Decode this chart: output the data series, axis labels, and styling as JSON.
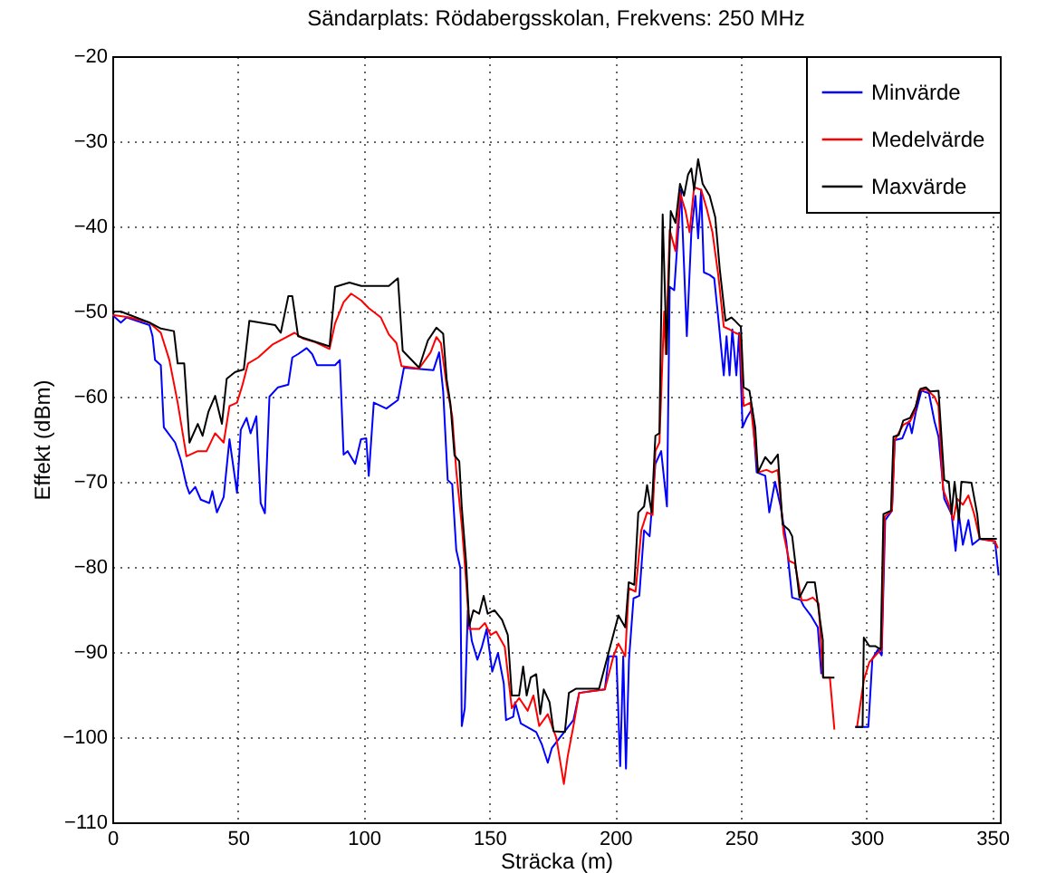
{
  "chart_data": {
    "type": "line",
    "title": "Sändarplats: Rödabergsskolan, Frekvens: 250 MHz",
    "xlabel": "Sträcka (m)",
    "ylabel": "Effekt (dBm)",
    "xlim": [
      0,
      353
    ],
    "xticks": [
      0,
      50,
      100,
      150,
      200,
      250,
      300,
      350
    ],
    "ylim": [
      -110,
      -20
    ],
    "yticks": [
      -110,
      -100,
      -90,
      -80,
      -70,
      -60,
      -50,
      -40,
      -30,
      -20
    ],
    "grid": true,
    "legend": "top right",
    "line_style": "solid",
    "marker": "none",
    "series": [
      {
        "name": "Minvärde",
        "color": "#0000ff",
        "x": [
          0,
          3.4,
          5.7,
          14.8,
          16,
          17,
          19.3,
          20.5,
          25,
          27.3,
          29.5,
          30.7,
          33,
          35.2,
          38.6,
          39.8,
          41.6,
          44.3,
          46.6,
          49.6,
          51.1,
          53.4,
          55,
          57.3,
          59,
          60.7,
          62.5,
          65.9,
          70,
          71.6,
          73.9,
          77.3,
          79.5,
          81.4,
          88.6,
          90.5,
          92,
          93.6,
          96.6,
          98.9,
          101,
          102,
          104,
          109,
          113.6,
          116,
          127.7,
          130,
          131.6,
          133.4,
          135.2,
          136.8,
          138.4,
          139,
          140.2,
          141.4,
          143,
          145.2,
          147,
          148.9,
          151.1,
          153.4,
          155.7,
          156.6,
          159.5,
          160.2,
          162.5,
          168.6,
          170.9,
          173.2,
          174.8,
          183.4,
          185.7,
          195.9,
          197.5,
          200.5,
          202,
          203.2,
          204.3,
          205.5,
          207.3,
          209.6,
          211.5,
          213.7,
          216,
          218.3,
          220.6,
          221.7,
          223.5,
          225.1,
          226.2,
          228.5,
          230.3,
          231.9,
          233,
          234.2,
          235.3,
          237.6,
          239.4,
          241,
          243.2,
          244.3,
          245.5,
          246.6,
          248.2,
          249.3,
          250.7,
          252.3,
          254.5,
          256.3,
          259.7,
          261.3,
          263.6,
          265.8,
          268.1,
          270.4,
          273.8,
          275,
          277.8,
          280.6,
          282,
          290,
          295.5,
          300.7,
          302.3,
          304.5,
          306,
          307.4,
          310.1,
          311.2,
          314.2,
          316.9,
          318,
          319.6,
          321.8,
          324.8,
          327,
          328.6,
          330.9,
          333.8,
          335.4,
          336.7,
          338.3,
          340.5,
          342.1,
          345,
          351.1,
          352.5
        ],
        "values": [
          -50.4,
          -51.3,
          -50.7,
          -51.6,
          -52.9,
          -55.7,
          -56.3,
          -63.6,
          -65.4,
          -67.5,
          -70.4,
          -71.4,
          -70.6,
          -72.1,
          -72.5,
          -71.1,
          -73.6,
          -71.8,
          -65,
          -71.3,
          -63.9,
          -62.5,
          -64.3,
          -62.3,
          -72.5,
          -73.7,
          -60,
          -58.9,
          -58.6,
          -55.4,
          -55,
          -54.3,
          -55,
          -56.3,
          -56.3,
          -55.7,
          -66.8,
          -66.4,
          -67.9,
          -65,
          -64.9,
          -69.3,
          -60.7,
          -61.4,
          -60.4,
          -56.6,
          -56.9,
          -54.8,
          -59.4,
          -69.8,
          -70.3,
          -78,
          -80.1,
          -98.7,
          -96.6,
          -85.1,
          -88.7,
          -90.9,
          -89.4,
          -87.3,
          -92.3,
          -90.1,
          -93.7,
          -98,
          -97.6,
          -95.9,
          -98.4,
          -99.4,
          -100.9,
          -103,
          -101.3,
          -98,
          -94.8,
          -94.4,
          -90.5,
          -90.5,
          -103.4,
          -90.5,
          -103.7,
          -90.9,
          -83.7,
          -83.4,
          -75.7,
          -76.4,
          -67.9,
          -66.4,
          -72.9,
          -47.1,
          -47.5,
          -40.4,
          -35.7,
          -52.9,
          -40.7,
          -36.4,
          -41.4,
          -35.7,
          -45.4,
          -45.7,
          -46.1,
          -50.7,
          -57.5,
          -52.9,
          -57.5,
          -52.1,
          -57.5,
          -52.5,
          -63.6,
          -62.5,
          -61.4,
          -68.9,
          -69.3,
          -73.6,
          -70,
          -72.9,
          -77.1,
          -83.6,
          -83.9,
          -84.6,
          -85.7,
          -87.1,
          -92.6,
          null,
          -98.8,
          -98.8,
          -90.8,
          -89.7,
          -90.4,
          -74.5,
          -73.4,
          -65.1,
          -64.9,
          -62.9,
          -64.3,
          -61.8,
          -59.3,
          -59.6,
          -62.9,
          -64.7,
          -72,
          -73.8,
          -78.1,
          -73.8,
          -77.4,
          -74.5,
          -77.4,
          -76.7,
          -77,
          -81
        ]
      },
      {
        "name": "Medelvärde",
        "color": "#ff0000",
        "x": [
          0,
          6.8,
          14.8,
          19.3,
          22.7,
          26,
          29.5,
          34,
          37.5,
          40.9,
          44.3,
          46.6,
          49.6,
          51.8,
          54,
          58,
          63.6,
          68,
          72.5,
          76,
          80.7,
          86.4,
          88.6,
          92,
          95,
          99,
          102,
          106.8,
          110,
          113,
          115,
          122,
          126.6,
          128.9,
          130.7,
          133,
          135.2,
          136.8,
          139,
          140.7,
          142,
          145.9,
          148.2,
          150.5,
          152.7,
          156.1,
          158.9,
          161.8,
          165.2,
          167.5,
          169.8,
          173.2,
          176.6,
          179.6,
          181.1,
          183.4,
          185.7,
          195.9,
          199.3,
          201.3,
          204,
          205.4,
          208.1,
          210.4,
          212.7,
          214.9,
          216,
          217.6,
          219.5,
          220.1,
          221.7,
          224,
          225.8,
          228,
          229.6,
          231.4,
          234.2,
          236.4,
          238.7,
          241,
          243.2,
          245.5,
          247.7,
          249.5,
          251.1,
          253.8,
          256.8,
          260.2,
          262.4,
          264.7,
          267,
          269.2,
          271.5,
          274.1,
          276.4,
          278.6,
          280.9,
          282,
          282.7,
          285.4,
          287.2,
          291,
          296.2,
          298.9,
          301.1,
          304.5,
          306,
          307.2,
          310.1,
          311.2,
          314.6,
          317.3,
          319.1,
          320.9,
          323.6,
          327,
          328.6,
          330.4,
          332.7,
          334.5,
          336,
          338.3,
          340.5,
          342.8,
          345,
          351.1,
          352.2
        ],
        "values": [
          -50.4,
          -50.7,
          -51.3,
          -52.5,
          -55.7,
          -60.7,
          -67,
          -66.4,
          -66.4,
          -64.3,
          -65.4,
          -61.1,
          -60.7,
          -58.6,
          -56.1,
          -55.4,
          -53.9,
          -53.2,
          -52.5,
          -53.2,
          -53.6,
          -54.4,
          -51.4,
          -48.9,
          -47.9,
          -48.7,
          -49.6,
          -50.7,
          -52.7,
          -53.7,
          -56.4,
          -56.7,
          -54.8,
          -53,
          -53.7,
          -58.7,
          -62.3,
          -68.7,
          -75.1,
          -81.6,
          -87.3,
          -87.3,
          -86.6,
          -88,
          -87.6,
          -89.4,
          -96.6,
          -95.4,
          -96.9,
          -95.1,
          -98.7,
          -97.3,
          -100.1,
          -105.5,
          -102.3,
          -98.7,
          -94.8,
          -94.4,
          -90.5,
          -89,
          -90.5,
          -82.5,
          -82.9,
          -75.7,
          -73.6,
          -73.9,
          -66.4,
          -65.4,
          -50,
          -55,
          -40.4,
          -42.9,
          -36.1,
          -38.2,
          -40.7,
          -35.4,
          -35.7,
          -37.9,
          -40.7,
          -45.7,
          -51.8,
          -52.1,
          -52.5,
          -52.7,
          -61.1,
          -60.7,
          -68.9,
          -68.6,
          -68.9,
          -68.6,
          -76.1,
          -79.3,
          -79.6,
          -83.9,
          -83.9,
          -83.6,
          -84.3,
          -89.7,
          -93,
          -93,
          -99.1,
          null,
          -98.8,
          -93.3,
          -91.2,
          -90.1,
          -89.7,
          -74.1,
          -73.4,
          -65.1,
          -63.3,
          -62.9,
          -61.8,
          -59.3,
          -59.1,
          -60,
          -61.1,
          -70.9,
          -72.7,
          -74.5,
          -72,
          -72.7,
          -71.6,
          -73.8,
          -76.7,
          -77,
          -77.8
        ]
      },
      {
        "name": "Maxvärde",
        "color": "#000000",
        "x": [
          0,
          3.4,
          14.8,
          19.3,
          24.5,
          26,
          28.6,
          30.7,
          34,
          35.9,
          38.2,
          40.9,
          43.6,
          45.5,
          48.9,
          52.3,
          54.5,
          64.8,
          67,
          70,
          71.6,
          73.9,
          86.4,
          88.6,
          94.3,
          99,
          110,
          113.6,
          115.5,
          122,
          125.5,
          128.9,
          131.6,
          133,
          134.5,
          136.1,
          138,
          139,
          140.7,
          142,
          143.6,
          145.9,
          147.7,
          149.3,
          152,
          155,
          157.3,
          158.9,
          161.8,
          163.4,
          164.8,
          166.4,
          168.6,
          170.2,
          171.6,
          173.9,
          175.5,
          180,
          181.6,
          184.5,
          193.6,
          197,
          201.3,
          204,
          205.4,
          207.6,
          209.2,
          211.5,
          212.7,
          214.5,
          216,
          217.6,
          218.9,
          220.5,
          222.1,
          224,
          225.8,
          227.4,
          229,
          230.3,
          231.4,
          233,
          234.8,
          237.6,
          239.8,
          241.6,
          243.9,
          246.2,
          247.7,
          250,
          251.1,
          253.4,
          255.7,
          256.8,
          259.7,
          262,
          264.7,
          266.6,
          269.2,
          270.4,
          273.3,
          276.4,
          279.4,
          282.6,
          282.7,
          287.2,
          291,
          295.5,
          298.4,
          298.9,
          301.1,
          303.4,
          305.6,
          306.7,
          309.7,
          310.7,
          312.8,
          314.6,
          317.3,
          319.6,
          321.4,
          323.6,
          325.4,
          328.6,
          330.9,
          332.7,
          333.8,
          335,
          336.7,
          337.7,
          341.7,
          344,
          345,
          351.8
        ],
        "values": [
          -50,
          -50,
          -51.3,
          -52,
          -52.3,
          -56.1,
          -56.1,
          -65.4,
          -63.2,
          -64.6,
          -61.8,
          -59.9,
          -63.2,
          -57.9,
          -57.1,
          -56.8,
          -51.1,
          -51.6,
          -52.5,
          -48.2,
          -48.2,
          -52.9,
          -54.1,
          -47.1,
          -46.6,
          -47,
          -47,
          -46.1,
          -54.6,
          -56.6,
          -53.4,
          -51.9,
          -52.6,
          -58,
          -60.9,
          -66.9,
          -67.6,
          -73,
          -79.4,
          -86.9,
          -85.1,
          -85.5,
          -83.4,
          -85.5,
          -85.1,
          -86.2,
          -88,
          -95.1,
          -95.1,
          -91.7,
          -95.1,
          -93,
          -92.6,
          -97.3,
          -94.4,
          -95.9,
          -99.3,
          -99.4,
          -94.8,
          -94.3,
          -94.3,
          -90.5,
          -85.7,
          -87.1,
          -81.8,
          -82.1,
          -73.6,
          -72.9,
          -70.4,
          -73.6,
          -64.6,
          -64.3,
          -38.6,
          -55,
          -38.2,
          -39.6,
          -35,
          -36.4,
          -33.9,
          -33.2,
          -35.7,
          -32.1,
          -35,
          -36.4,
          -38.9,
          -45,
          -51.1,
          -50.7,
          -51.1,
          -51.8,
          -58.9,
          -59.3,
          -63.6,
          -68.9,
          -67.1,
          -67.9,
          -66.8,
          -75,
          -75.7,
          -76.4,
          -83.6,
          -81.8,
          -81.8,
          -88.6,
          -93,
          -93,
          null,
          -98.8,
          -98.8,
          -88.3,
          -89.3,
          -89.3,
          -89.7,
          -73.8,
          -73.4,
          -64.7,
          -64.5,
          -62.8,
          -62.5,
          -61.1,
          -59.1,
          -58.9,
          -59.4,
          -59.3,
          -69.8,
          -70,
          -73.8,
          -70,
          -74.5,
          -70,
          -70.1,
          -73.8,
          -76.7,
          -76.7
        ]
      }
    ]
  }
}
